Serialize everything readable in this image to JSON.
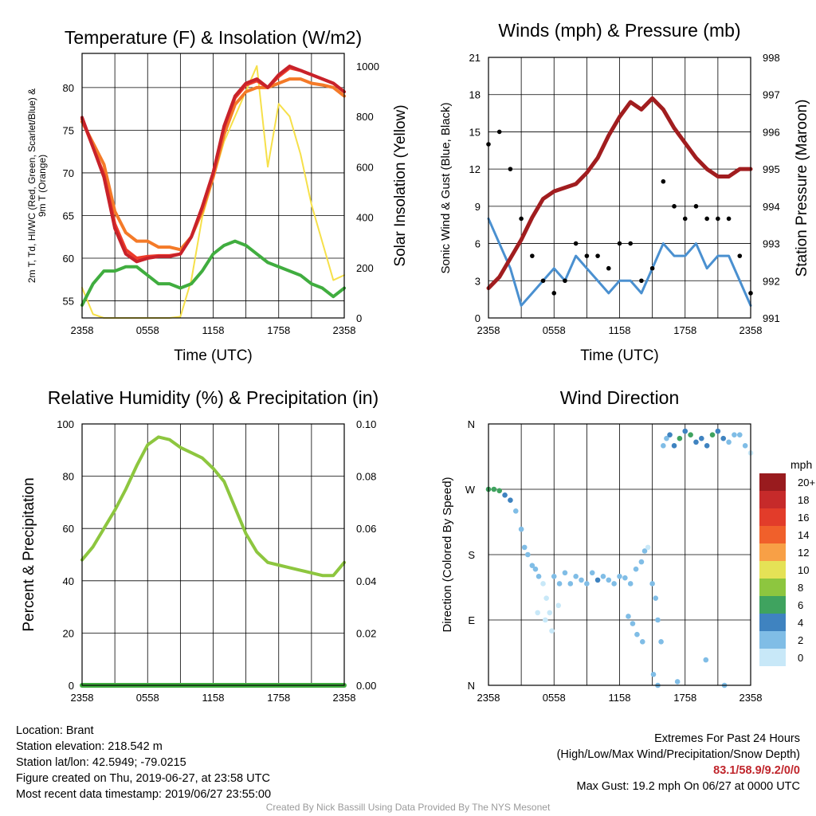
{
  "chart_data": [
    {
      "type": "line",
      "title": "Temperature (F) & Insolation (W/m2)",
      "xlabel": "Time (UTC)",
      "ylabel": "2m T, Td, HI/WC (Red, Green, Scarlet/Blue) & 9m T (Orange)",
      "ylabel2": "Solar Insolation (Yellow)",
      "x_ticks": [
        "2358",
        "0558",
        "1158",
        "1758",
        "2358"
      ],
      "y_ticks": [
        55,
        60,
        65,
        70,
        75,
        80
      ],
      "y2_ticks": [
        0,
        200,
        400,
        600,
        800,
        1000
      ],
      "ylim": [
        53,
        84
      ],
      "y2lim": [
        0,
        1050
      ],
      "grid": true,
      "x": [
        0,
        1,
        2,
        3,
        4,
        5,
        6,
        7,
        8,
        9,
        10,
        11,
        12,
        13,
        14,
        15,
        16,
        17,
        18,
        19,
        20,
        21,
        22,
        23,
        24
      ],
      "series": [
        {
          "name": "2m T",
          "color": "#c8222a",
          "axis": "left",
          "values": [
            76.5,
            73,
            69.5,
            63.5,
            60.5,
            59.6,
            60,
            60.2,
            60.2,
            60.5,
            62.5,
            66,
            70,
            75.5,
            79,
            80.5,
            81,
            80,
            81.5,
            82.5,
            82,
            81.5,
            81,
            80.5,
            79.5
          ]
        },
        {
          "name": "9m T",
          "color": "#f47a28",
          "axis": "left",
          "values": [
            76,
            73.5,
            71,
            65.5,
            63,
            62,
            62,
            61.3,
            61.3,
            61,
            62.5,
            65.5,
            69.5,
            74.5,
            78,
            79.5,
            80,
            80,
            80.5,
            81,
            81,
            80.5,
            80.3,
            80,
            79
          ]
        },
        {
          "name": "HI/WC",
          "color": "#ee3b2a",
          "axis": "left",
          "values": [
            76.3,
            73,
            69.8,
            64,
            61,
            60,
            60.2,
            60.3,
            60.3,
            60.5,
            62.5,
            66,
            70,
            75.3,
            78.8,
            80.3,
            80.8,
            80,
            81.3,
            82.3,
            82,
            81.5,
            81,
            80.5,
            79.5
          ]
        },
        {
          "name": "Td",
          "color": "#40ad3f",
          "axis": "left",
          "values": [
            54.5,
            57,
            58.5,
            58.5,
            59,
            59,
            58,
            57,
            57,
            56.5,
            57,
            58.5,
            60.5,
            61.5,
            62,
            61.5,
            60.5,
            59.5,
            59,
            58.5,
            58,
            57,
            56.5,
            55.5,
            56.5
          ]
        },
        {
          "name": "Solar Insolation",
          "color": "#f6e04a",
          "axis": "right",
          "values": [
            120,
            15,
            0,
            0,
            0,
            0,
            0,
            0,
            0,
            5,
            150,
            400,
            550,
            700,
            800,
            900,
            1000,
            600,
            850,
            800,
            650,
            450,
            300,
            150,
            170
          ]
        }
      ]
    },
    {
      "type": "line",
      "title": "Winds (mph) & Pressure (mb)",
      "xlabel": "Time (UTC)",
      "ylabel": "Sonic Wind & Gust (Blue, Black)",
      "ylabel2": "Station Pressure (Maroon)",
      "x_ticks": [
        "2358",
        "0558",
        "1158",
        "1758",
        "2358"
      ],
      "y_ticks": [
        0,
        3,
        6,
        9,
        12,
        15,
        18,
        21
      ],
      "y2_ticks": [
        991,
        992,
        993,
        994,
        995,
        996,
        997,
        998
      ],
      "ylim": [
        0,
        21
      ],
      "y2lim": [
        991,
        998
      ],
      "grid": true,
      "x": [
        0,
        1,
        2,
        3,
        4,
        5,
        6,
        7,
        8,
        9,
        10,
        11,
        12,
        13,
        14,
        15,
        16,
        17,
        18,
        19,
        20,
        21,
        22,
        23,
        24
      ],
      "series": [
        {
          "name": "Station Pressure",
          "color": "#a11d1f",
          "axis": "right",
          "values": [
            991.8,
            992.1,
            992.6,
            993.1,
            993.7,
            994.2,
            994.4,
            994.5,
            994.6,
            994.9,
            995.3,
            995.9,
            996.4,
            996.8,
            996.6,
            996.9,
            996.6,
            996.1,
            995.7,
            995.3,
            995.0,
            994.8,
            994.8,
            995.0,
            995.0
          ]
        },
        {
          "name": "Sonic Wind",
          "color": "#4a90d0",
          "axis": "left",
          "values": [
            8,
            6,
            4,
            1,
            2,
            3,
            4,
            3,
            5,
            4,
            3,
            2,
            3,
            3,
            2,
            4,
            6,
            5,
            5,
            6,
            4,
            5,
            5,
            3,
            1
          ]
        },
        {
          "name": "Gust",
          "color": "#000000",
          "axis": "left",
          "values": [
            14,
            15,
            12,
            8,
            5,
            3,
            2,
            3,
            6,
            5,
            5,
            4,
            6,
            6,
            3,
            4,
            11,
            9,
            8,
            9,
            8,
            8,
            8,
            5,
            2
          ]
        }
      ]
    },
    {
      "type": "line",
      "title": "Relative Humidity (%) & Precipitation (in)",
      "ylabel": "Percent & Precipitation",
      "x_ticks": [
        "2358",
        "0558",
        "1158",
        "1758",
        "2358"
      ],
      "y_ticks": [
        0,
        20,
        40,
        60,
        80,
        100
      ],
      "y2_ticks": [
        "0.00",
        "0.02",
        "0.04",
        "0.06",
        "0.08",
        "0.10"
      ],
      "ylim": [
        0,
        100
      ],
      "y2lim": [
        0,
        0.1
      ],
      "grid": true,
      "x": [
        0,
        1,
        2,
        3,
        4,
        5,
        6,
        7,
        8,
        9,
        10,
        11,
        12,
        13,
        14,
        15,
        16,
        17,
        18,
        19,
        20,
        21,
        22,
        23,
        24
      ],
      "series": [
        {
          "name": "Relative Humidity",
          "color": "#8dc63f",
          "axis": "left",
          "values": [
            48,
            53,
            60,
            67,
            75,
            84,
            92,
            95,
            94,
            91,
            89,
            87,
            83,
            78,
            68,
            58,
            51,
            47,
            46,
            45,
            44,
            43,
            42,
            42,
            47
          ]
        },
        {
          "name": "Precipitation",
          "color": "#40ad3f",
          "axis": "right",
          "values": [
            0,
            0,
            0,
            0,
            0,
            0,
            0,
            0,
            0,
            0,
            0,
            0,
            0,
            0,
            0,
            0,
            0,
            0,
            0,
            0,
            0,
            0,
            0,
            0,
            0
          ]
        }
      ]
    },
    {
      "type": "scatter",
      "title": "Wind Direction",
      "ylabel": "Direction (Colored By Speed)",
      "x_ticks": [
        "2358",
        "0558",
        "1158",
        "1758",
        "2358"
      ],
      "y_ticks": [
        "N",
        "E",
        "S",
        "W",
        "N"
      ],
      "ylim": [
        0,
        360
      ],
      "grid": true,
      "colorbar": {
        "unit": "mph",
        "labels": [
          "20+",
          "18",
          "16",
          "14",
          "12",
          "10",
          "8",
          "6",
          "4",
          "2",
          "0"
        ],
        "colors": [
          "#991b1e",
          "#c62a2a",
          "#e23c2a",
          "#f0602b",
          "#f8a046",
          "#e5e256",
          "#8dc63f",
          "#3fa35f",
          "#3f83c0",
          "#80bde6",
          "#c8e8f8"
        ]
      },
      "points_x": [
        0,
        0.5,
        1,
        1.5,
        2,
        2.5,
        3,
        3.3,
        3.6,
        4,
        4.3,
        4.6,
        5,
        5.3,
        5.6,
        6,
        6.5,
        7,
        7.5,
        8,
        8.5,
        9,
        9.5,
        10,
        10.5,
        11,
        11.5,
        12,
        12.5,
        13,
        13.5,
        14,
        14.3,
        14.6,
        15,
        15.3,
        15.5,
        15.8,
        16,
        16.3,
        16.6,
        17,
        17.5,
        18,
        18.5,
        19,
        19.5,
        20,
        20.5,
        21,
        21.5,
        22,
        22.5,
        23,
        23.5,
        24,
        4.5,
        5.2,
        5.8,
        6.4,
        12.8,
        13.2,
        13.6,
        14.1,
        15.1,
        15.5,
        17.3,
        19.9,
        21.6
      ],
      "points_y": [
        270,
        270,
        268,
        262,
        255,
        240,
        215,
        190,
        180,
        165,
        160,
        150,
        140,
        120,
        100,
        150,
        140,
        155,
        140,
        150,
        145,
        140,
        155,
        145,
        150,
        145,
        140,
        150,
        148,
        140,
        160,
        170,
        185,
        190,
        140,
        120,
        90,
        60,
        330,
        340,
        345,
        330,
        340,
        350,
        345,
        335,
        340,
        330,
        345,
        350,
        340,
        335,
        345,
        345,
        330,
        320,
        100,
        90,
        75,
        110,
        95,
        85,
        70,
        60,
        15,
        0,
        5,
        35,
        0
      ],
      "points_speed": [
        6,
        6,
        6,
        5,
        4,
        3,
        3,
        2,
        2,
        3,
        2,
        2,
        1,
        1,
        1,
        2,
        3,
        3,
        2,
        3,
        3,
        3,
        3,
        4,
        3,
        3,
        2,
        3,
        3,
        2,
        2,
        2,
        2,
        1,
        3,
        2,
        2,
        2,
        2,
        3,
        4,
        5,
        6,
        5,
        6,
        5,
        4,
        4,
        6,
        5,
        4,
        3,
        3,
        2,
        2,
        1,
        1,
        1,
        1,
        1,
        2,
        2,
        2,
        2,
        3,
        3,
        3,
        3,
        3
      ]
    }
  ],
  "footer": {
    "location": "Location: Brant",
    "elevation": "Station elevation: 218.542 m",
    "latlon": "Station lat/lon: 42.5949; -79.0215",
    "created": "Figure created on Thu, 2019-06-27, at 23:58 UTC",
    "recent": "Most recent data timestamp: 2019/06/27 23:55:00",
    "extremes_title": "Extremes For Past 24 Hours",
    "extremes_legend": "(High/Low/Max Wind/Precipitation/Snow Depth)",
    "extremes_values": "83.1/58.9/9.2/0/0",
    "max_gust": "Max Gust: 19.2 mph On 06/27 at 0000 UTC",
    "credit": "Created By Nick Bassill Using Data Provided By The NYS Mesonet"
  }
}
